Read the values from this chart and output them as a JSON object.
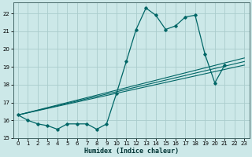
{
  "title": "",
  "xlabel": "Humidex (Indice chaleur)",
  "ylabel": "",
  "bg_color": "#cce8e8",
  "grid_color": "#aacccc",
  "line_color": "#006666",
  "xlim": [
    -0.5,
    23.5
  ],
  "ylim": [
    15,
    22.6
  ],
  "yticks": [
    15,
    16,
    17,
    18,
    19,
    20,
    21,
    22
  ],
  "xticks": [
    0,
    1,
    2,
    3,
    4,
    5,
    6,
    7,
    8,
    9,
    10,
    11,
    12,
    13,
    14,
    15,
    16,
    17,
    18,
    19,
    20,
    21,
    22,
    23
  ],
  "main_x": [
    0,
    1,
    2,
    3,
    4,
    5,
    6,
    7,
    8,
    9,
    10,
    11,
    12,
    13,
    14,
    15,
    16,
    17,
    18,
    19,
    20,
    21
  ],
  "main_y": [
    16.3,
    16.0,
    15.8,
    15.7,
    15.5,
    15.8,
    15.8,
    15.8,
    15.5,
    15.8,
    17.5,
    19.3,
    21.1,
    22.3,
    21.9,
    21.1,
    21.3,
    21.8,
    21.9,
    19.7,
    18.1,
    19.1
  ],
  "trend_lines": [
    {
      "x": [
        0,
        23
      ],
      "y": [
        16.3,
        19.1
      ]
    },
    {
      "x": [
        0,
        23
      ],
      "y": [
        16.3,
        19.3
      ]
    },
    {
      "x": [
        0,
        23
      ],
      "y": [
        16.3,
        19.5
      ]
    }
  ]
}
